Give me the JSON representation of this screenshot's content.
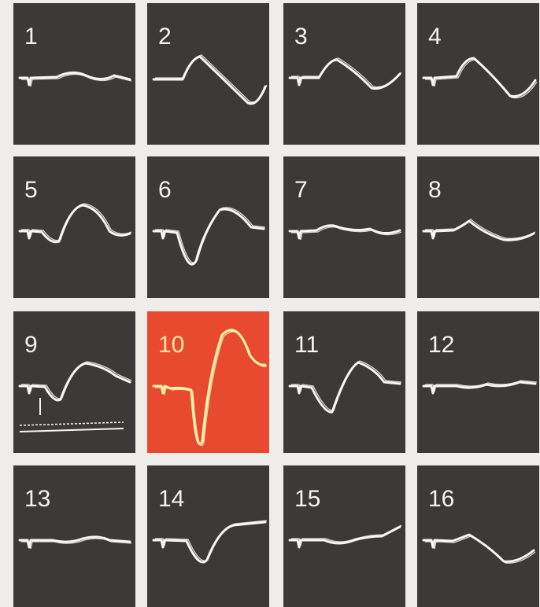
{
  "panels": [
    "1",
    "2",
    "3",
    "4",
    "5",
    "6",
    "7",
    "8",
    "9",
    "10",
    "11",
    "12",
    "13",
    "14",
    "15",
    "16"
  ]
}
